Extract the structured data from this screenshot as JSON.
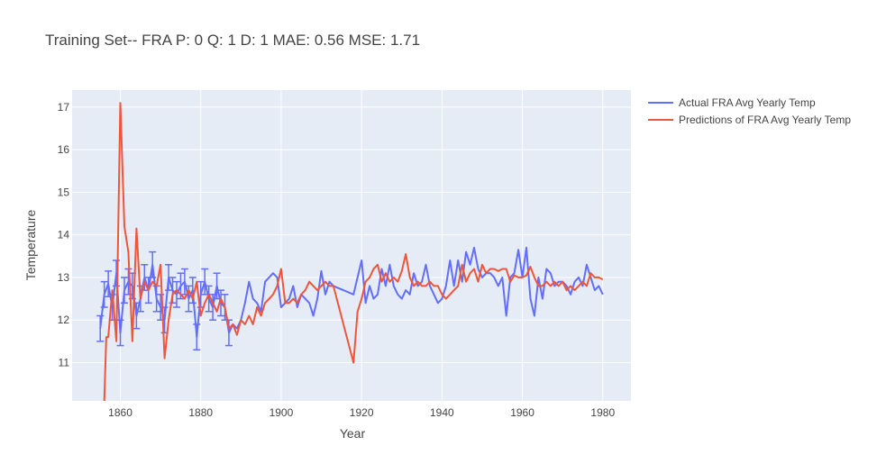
{
  "chart_data": {
    "type": "line",
    "title": "Training Set-- FRA P: 0 Q: 1 D: 1  MAE: 0.56 MSE: 1.71",
    "xlabel": "Year",
    "ylabel": "Temperature",
    "xlim": [
      1848,
      1987
    ],
    "ylim": [
      10.1,
      17.4
    ],
    "xticks": [
      1860,
      1880,
      1900,
      1920,
      1940,
      1960,
      1980
    ],
    "yticks": [
      11,
      12,
      13,
      14,
      15,
      16,
      17
    ],
    "grid": true,
    "legend_position": "top-right outside",
    "colors": {
      "plot_bg": "#E5ECF6",
      "grid": "#ffffff",
      "actual": "#636EFA",
      "predicted": "#EF553B"
    },
    "series": [
      {
        "name": "Actual FRA Avg Yearly Temp",
        "x": [
          1855,
          1856,
          1857,
          1858,
          1859,
          1860,
          1861,
          1862,
          1863,
          1864,
          1865,
          1866,
          1867,
          1868,
          1869,
          1870,
          1871,
          1872,
          1873,
          1874,
          1875,
          1876,
          1877,
          1878,
          1879,
          1880,
          1881,
          1882,
          1883,
          1884,
          1885,
          1886,
          1887,
          1888,
          1889,
          1890,
          1891,
          1892,
          1893,
          1894,
          1895,
          1896,
          1897,
          1898,
          1899,
          1900,
          1901,
          1902,
          1903,
          1904,
          1905,
          1906,
          1907,
          1908,
          1909,
          1910,
          1911,
          1912,
          1913,
          1918,
          1919,
          1920,
          1921,
          1922,
          1923,
          1924,
          1925,
          1926,
          1927,
          1928,
          1929,
          1930,
          1931,
          1932,
          1933,
          1934,
          1935,
          1936,
          1937,
          1938,
          1939,
          1940,
          1941,
          1942,
          1943,
          1944,
          1945,
          1946,
          1947,
          1948,
          1949,
          1950,
          1951,
          1952,
          1953,
          1954,
          1955,
          1956,
          1957,
          1958,
          1959,
          1960,
          1961,
          1962,
          1963,
          1964,
          1965,
          1966,
          1967,
          1968,
          1969,
          1970,
          1971,
          1972,
          1973,
          1974,
          1975,
          1976,
          1977,
          1978,
          1979,
          1980
        ],
        "y": [
          11.8,
          12.6,
          12.85,
          12.3,
          13.1,
          11.7,
          12.7,
          12.9,
          12.8,
          12.1,
          12.5,
          13.0,
          12.7,
          13.3,
          12.5,
          12.3,
          12.0,
          13.0,
          12.7,
          12.6,
          12.8,
          12.9,
          12.5,
          12.7,
          11.6,
          12.6,
          12.9,
          12.5,
          12.3,
          12.8,
          12.4,
          12.3,
          11.7,
          11.9,
          11.8,
          12.0,
          12.4,
          12.9,
          12.5,
          12.4,
          12.2,
          12.9,
          13.0,
          13.1,
          13.0,
          12.3,
          12.4,
          12.5,
          12.8,
          12.3,
          12.6,
          12.5,
          12.4,
          12.1,
          12.5,
          13.15,
          12.6,
          12.9,
          12.8,
          12.6,
          13.0,
          13.4,
          12.4,
          12.8,
          12.5,
          12.6,
          13.2,
          12.8,
          13.3,
          12.8,
          12.6,
          12.5,
          12.7,
          12.6,
          13.1,
          12.8,
          12.9,
          13.3,
          12.8,
          12.6,
          12.4,
          12.5,
          12.8,
          13.4,
          12.8,
          13.4,
          12.9,
          13.6,
          13.3,
          13.7,
          13.2,
          13.0,
          13.1,
          13.1,
          13.0,
          12.8,
          13.0,
          12.1,
          13.0,
          13.1,
          13.65,
          13.0,
          13.7,
          12.5,
          12.1,
          13.0,
          12.5,
          13.2,
          13.1,
          12.8,
          12.9,
          12.9,
          12.8,
          12.6,
          12.9,
          13.0,
          12.8,
          13.3,
          13.0,
          12.7,
          12.8,
          12.6
        ],
        "error_bars_until": 1887,
        "error": 0.3
      },
      {
        "name": "Predictions of FRA Avg Yearly Temp",
        "x": [
          1856,
          1856.5,
          1857,
          1858,
          1859,
          1860,
          1861,
          1862,
          1863,
          1864,
          1865,
          1866,
          1867,
          1868,
          1869,
          1870,
          1871,
          1872,
          1873,
          1874,
          1875,
          1876,
          1877,
          1878,
          1879,
          1880,
          1881,
          1882,
          1883,
          1884,
          1885,
          1886,
          1887,
          1888,
          1889,
          1890,
          1891,
          1892,
          1893,
          1894,
          1895,
          1896,
          1897,
          1898,
          1899,
          1900,
          1901,
          1902,
          1903,
          1904,
          1905,
          1906,
          1907,
          1908,
          1909,
          1910,
          1911,
          1912,
          1913,
          1918,
          1919,
          1920,
          1921,
          1922,
          1923,
          1924,
          1925,
          1926,
          1927,
          1928,
          1929,
          1930,
          1931,
          1932,
          1933,
          1934,
          1935,
          1936,
          1937,
          1938,
          1939,
          1940,
          1941,
          1942,
          1943,
          1944,
          1945,
          1946,
          1947,
          1948,
          1949,
          1950,
          1951,
          1952,
          1953,
          1954,
          1955,
          1956,
          1957,
          1958,
          1959,
          1960,
          1961,
          1962,
          1963,
          1964,
          1965,
          1966,
          1967,
          1968,
          1969,
          1970,
          1971,
          1972,
          1973,
          1974,
          1975,
          1976,
          1977,
          1978,
          1979,
          1980
        ],
        "y": [
          10.1,
          11.6,
          11.6,
          12.7,
          11.5,
          17.1,
          14.2,
          13.6,
          11.5,
          14.15,
          12.5,
          12.9,
          12.7,
          12.9,
          12.8,
          13.3,
          11.1,
          12.0,
          12.6,
          12.7,
          12.6,
          12.5,
          12.7,
          12.5,
          12.9,
          12.1,
          12.4,
          12.6,
          12.4,
          12.2,
          12.5,
          12.3,
          11.8,
          11.9,
          11.65,
          12.0,
          11.9,
          12.1,
          11.9,
          12.3,
          12.1,
          12.4,
          12.5,
          12.6,
          12.8,
          13.2,
          12.4,
          12.4,
          12.5,
          12.4,
          12.6,
          12.7,
          12.9,
          12.8,
          12.7,
          12.8,
          12.9,
          12.8,
          12.8,
          11.0,
          12.2,
          12.5,
          12.9,
          13.0,
          13.2,
          13.3,
          12.9,
          13.1,
          12.9,
          13.0,
          12.9,
          13.15,
          13.55,
          13.0,
          12.8,
          12.9,
          12.8,
          12.8,
          12.9,
          12.8,
          12.8,
          12.6,
          12.5,
          12.6,
          12.7,
          12.8,
          13.3,
          12.9,
          13.1,
          13.2,
          12.9,
          13.3,
          13.1,
          13.2,
          13.2,
          13.15,
          13.2,
          13.2,
          12.9,
          13.05,
          13.0,
          13.0,
          13.05,
          13.25,
          13.0,
          12.8,
          12.8,
          12.9,
          12.8,
          12.9,
          12.8,
          12.9,
          12.7,
          12.8,
          12.7,
          12.8,
          12.9,
          12.8,
          13.1,
          13.0,
          13.0,
          12.95
        ]
      }
    ]
  }
}
